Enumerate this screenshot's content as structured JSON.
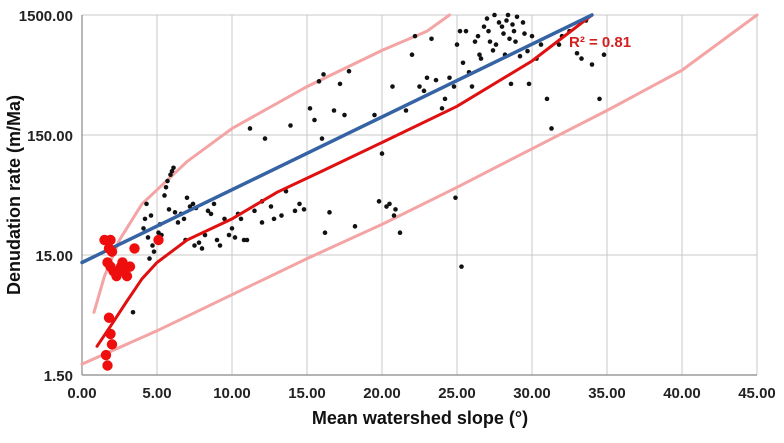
{
  "chart_data": {
    "type": "scatter",
    "xlabel": "Mean watershed slope (°)",
    "ylabel": "Denudation rate (m/Ma)",
    "x_ticks": [
      "0.00",
      "5.00",
      "10.00",
      "15.00",
      "20.00",
      "25.00",
      "30.00",
      "35.00",
      "40.00",
      "45.00"
    ],
    "y_ticks": [
      "1.50",
      "15.00",
      "150.00",
      "1500.00"
    ],
    "xlim": [
      0,
      45
    ],
    "ylim": [
      1.5,
      1500
    ],
    "y_scale": "log",
    "grid": true,
    "annotation": "R² = 0.81",
    "colors": {
      "black_points": "#111111",
      "red_points": "#ee0e0e",
      "red_curve": "#e01010",
      "blue_line": "#3563a3",
      "envelope": "#f4a4a4",
      "grid": "#c8c8c8"
    },
    "series": [
      {
        "kind": "points",
        "points": [
          [
            4.1,
            25
          ],
          [
            4.2,
            30
          ],
          [
            4.3,
            40
          ],
          [
            4.4,
            21
          ],
          [
            4.6,
            32
          ],
          [
            4.7,
            18
          ],
          [
            4.8,
            16
          ],
          [
            4.5,
            14
          ],
          [
            5.1,
            23
          ],
          [
            5.2,
            27
          ],
          [
            5.3,
            22
          ],
          [
            5.5,
            47
          ],
          [
            5.6,
            55
          ],
          [
            5.7,
            62
          ],
          [
            5.8,
            36
          ],
          [
            5.9,
            70
          ],
          [
            6.0,
            75
          ],
          [
            6.1,
            80
          ],
          [
            6.2,
            34
          ],
          [
            6.4,
            28
          ],
          [
            6.6,
            33
          ],
          [
            6.8,
            30
          ],
          [
            6.9,
            20
          ],
          [
            7.0,
            45
          ],
          [
            7.2,
            38
          ],
          [
            7.4,
            40
          ],
          [
            7.6,
            37
          ],
          [
            7.8,
            19
          ],
          [
            8.0,
            17
          ],
          [
            8.2,
            22
          ],
          [
            8.4,
            35
          ],
          [
            8.6,
            33
          ],
          [
            8.8,
            40
          ],
          [
            9.0,
            20
          ],
          [
            9.2,
            18
          ],
          [
            9.5,
            30
          ],
          [
            9.8,
            22
          ],
          [
            10.0,
            25
          ],
          [
            10.2,
            21
          ],
          [
            10.4,
            33
          ],
          [
            10.6,
            30
          ],
          [
            10.8,
            20
          ],
          [
            11.0,
            20
          ],
          [
            11.2,
            170
          ],
          [
            11.5,
            35
          ],
          [
            12.0,
            42
          ],
          [
            12.2,
            140
          ],
          [
            12.8,
            30
          ],
          [
            13.3,
            32
          ],
          [
            13.6,
            51
          ],
          [
            13.9,
            180
          ],
          [
            14.2,
            35
          ],
          [
            14.5,
            40
          ],
          [
            14.8,
            36
          ],
          [
            15.2,
            250
          ],
          [
            15.5,
            200
          ],
          [
            15.8,
            420
          ],
          [
            16.0,
            140
          ],
          [
            16.1,
            480
          ],
          [
            16.2,
            23
          ],
          [
            16.8,
            240
          ],
          [
            17.2,
            400
          ],
          [
            17.5,
            220
          ],
          [
            17.8,
            510
          ],
          [
            18.2,
            26
          ],
          [
            19.5,
            220
          ],
          [
            20.0,
            105
          ],
          [
            20.5,
            40
          ],
          [
            20.7,
            380
          ],
          [
            20.8,
            32
          ],
          [
            20.9,
            36
          ],
          [
            21.2,
            23
          ],
          [
            21.6,
            240
          ],
          [
            22.0,
            700
          ],
          [
            22.2,
            1000
          ],
          [
            22.5,
            380
          ],
          [
            22.8,
            350
          ],
          [
            23.0,
            450
          ],
          [
            23.3,
            950
          ],
          [
            23.6,
            430
          ],
          [
            24.0,
            250
          ],
          [
            24.2,
            300
          ],
          [
            24.5,
            450
          ],
          [
            24.8,
            380
          ],
          [
            25.0,
            850
          ],
          [
            25.2,
            1100
          ],
          [
            25.3,
            12
          ],
          [
            25.4,
            600
          ],
          [
            25.6,
            1100
          ],
          [
            25.8,
            500
          ],
          [
            26.0,
            380
          ],
          [
            26.2,
            900
          ],
          [
            26.4,
            1000
          ],
          [
            26.5,
            700
          ],
          [
            26.6,
            650
          ],
          [
            26.8,
            1200
          ],
          [
            27.0,
            1400
          ],
          [
            27.1,
            1100
          ],
          [
            27.2,
            900
          ],
          [
            27.4,
            760
          ],
          [
            27.5,
            1500
          ],
          [
            27.6,
            850
          ],
          [
            27.8,
            1300
          ],
          [
            28.0,
            1200
          ],
          [
            28.1,
            1050
          ],
          [
            28.2,
            700
          ],
          [
            28.3,
            1350
          ],
          [
            28.4,
            1500
          ],
          [
            28.5,
            950
          ],
          [
            28.6,
            400
          ],
          [
            28.7,
            1250
          ],
          [
            28.8,
            1100
          ],
          [
            28.9,
            900
          ],
          [
            29.0,
            1450
          ],
          [
            29.2,
            680
          ],
          [
            29.4,
            1300
          ],
          [
            29.5,
            1050
          ],
          [
            29.7,
            750
          ],
          [
            29.8,
            400
          ],
          [
            30.0,
            1000
          ],
          [
            30.3,
            650
          ],
          [
            30.6,
            850
          ],
          [
            31.0,
            300
          ],
          [
            31.3,
            170
          ],
          [
            31.8,
            850
          ],
          [
            32.0,
            1000
          ],
          [
            32.5,
            1100
          ],
          [
            33.0,
            720
          ],
          [
            33.3,
            650
          ],
          [
            33.6,
            1350
          ],
          [
            34.0,
            580
          ],
          [
            34.5,
            300
          ],
          [
            34.8,
            700
          ],
          [
            24.9,
            45
          ],
          [
            20.3,
            38
          ],
          [
            19.8,
            42
          ],
          [
            16.5,
            34
          ],
          [
            12.6,
            38
          ],
          [
            12.0,
            28
          ],
          [
            7.5,
            18
          ],
          [
            3.4,
            5
          ]
        ]
      },
      {
        "kind": "points",
        "points": [
          [
            1.5,
            20
          ],
          [
            1.7,
            13
          ],
          [
            1.8,
            17
          ],
          [
            1.9,
            20
          ],
          [
            2.0,
            16
          ],
          [
            1.9,
            12
          ],
          [
            2.1,
            11
          ],
          [
            2.3,
            10
          ],
          [
            2.6,
            12
          ],
          [
            2.7,
            13
          ],
          [
            2.8,
            11
          ],
          [
            3.0,
            10
          ],
          [
            3.2,
            12
          ],
          [
            3.5,
            17
          ],
          [
            1.8,
            4.5
          ],
          [
            1.9,
            3.3
          ],
          [
            2.0,
            2.7
          ],
          [
            1.6,
            2.2
          ],
          [
            1.7,
            1.8
          ],
          [
            5.1,
            20
          ]
        ]
      },
      {
        "kind": "curve",
        "points": [
          [
            1,
            2.6
          ],
          [
            2,
            4.0
          ],
          [
            3,
            6.2
          ],
          [
            4,
            9.5
          ],
          [
            5,
            13
          ],
          [
            7,
            20
          ],
          [
            10,
            30
          ],
          [
            13,
            50
          ],
          [
            16,
            75
          ],
          [
            20,
            130
          ],
          [
            25,
            260
          ],
          [
            30,
            620
          ],
          [
            34,
            1500
          ]
        ]
      },
      {
        "kind": "line",
        "points": [
          [
            0,
            13
          ],
          [
            34,
            1500
          ]
        ]
      },
      {
        "kind": "envelope-upper",
        "points": [
          [
            0.8,
            5
          ],
          [
            1.5,
            10
          ],
          [
            2.5,
            20
          ],
          [
            4,
            40
          ],
          [
            7,
            90
          ],
          [
            10,
            170
          ],
          [
            15,
            380
          ],
          [
            20,
            760
          ],
          [
            23,
            1100
          ],
          [
            24.5,
            1500
          ]
        ]
      },
      {
        "kind": "envelope-lower",
        "points": [
          [
            0,
            1.85
          ],
          [
            5,
            3.5
          ],
          [
            10,
            7
          ],
          [
            15,
            14
          ],
          [
            20,
            27
          ],
          [
            25,
            55
          ],
          [
            30,
            115
          ],
          [
            35,
            240
          ],
          [
            40,
            520
          ],
          [
            45,
            1500
          ]
        ]
      }
    ]
  }
}
